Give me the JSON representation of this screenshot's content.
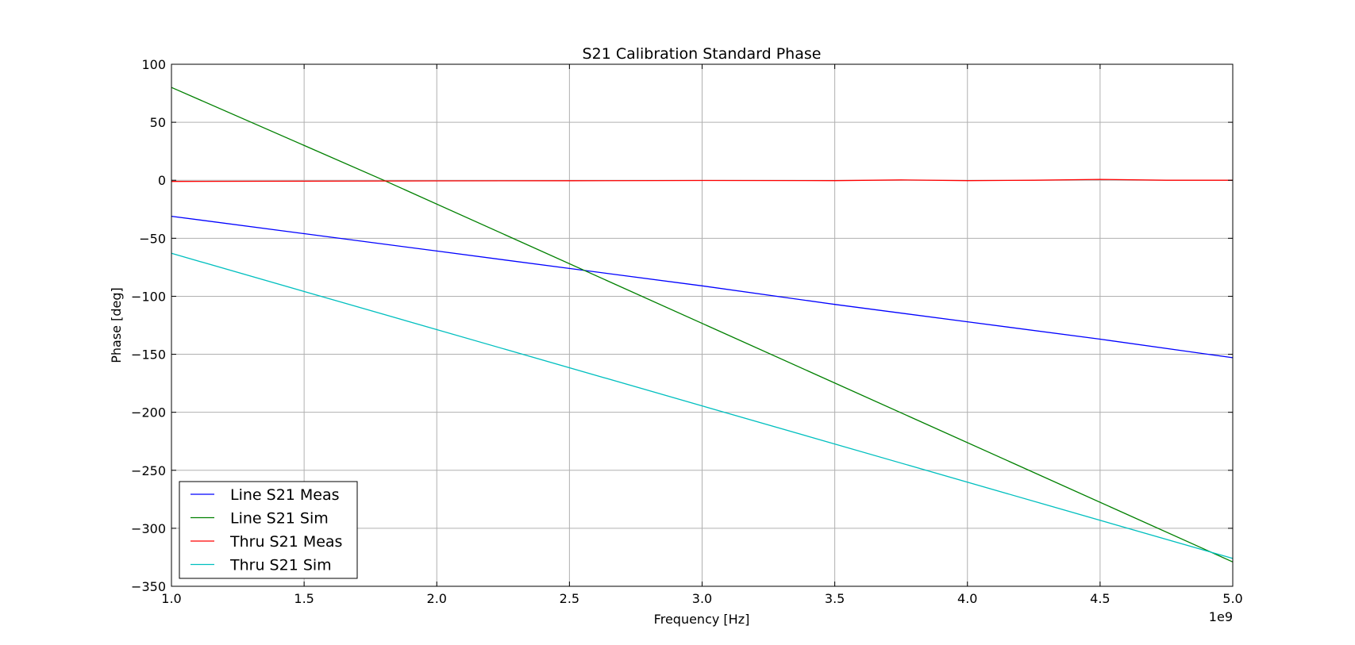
{
  "chart_data": {
    "type": "line",
    "title": "S21 Calibration Standard Phase",
    "xlabel": "Frequency [Hz]",
    "ylabel": "Phase [deg]",
    "x_offset_label": "1e9",
    "xlim": [
      1.0,
      5.0
    ],
    "ylim": [
      -350,
      100
    ],
    "xticks": [
      1.0,
      1.5,
      2.0,
      2.5,
      3.0,
      3.5,
      4.0,
      4.5,
      5.0
    ],
    "xtick_labels": [
      "1.0",
      "1.5",
      "2.0",
      "2.5",
      "3.0",
      "3.5",
      "4.0",
      "4.5",
      "5.0"
    ],
    "yticks": [
      100,
      50,
      0,
      -50,
      -100,
      -150,
      -200,
      -250,
      -300,
      -350
    ],
    "ytick_labels": [
      "100",
      "50",
      "0",
      "−50",
      "−100",
      "−150",
      "−200",
      "−250",
      "−300",
      "−350"
    ],
    "grid": true,
    "legend_position": "lower-left",
    "series": [
      {
        "name": "Line S21 Meas",
        "color": "#0000ff",
        "x": [
          1.0,
          1.5,
          2.0,
          2.5,
          3.0,
          3.5,
          4.0,
          4.5,
          5.0
        ],
        "y": [
          -31,
          -46,
          -61,
          -76,
          -91,
          -107,
          -122,
          -137,
          -153
        ]
      },
      {
        "name": "Line S21 Sim",
        "color": "#008000",
        "x": [
          1.0,
          1.8,
          5.0
        ],
        "y": [
          80,
          0,
          -329
        ]
      },
      {
        "name": "Thru S21 Meas",
        "color": "#ff0000",
        "x": [
          1.0,
          1.5,
          2.0,
          2.5,
          3.0,
          3.5,
          3.75,
          4.0,
          4.25,
          4.5,
          4.75,
          5.0
        ],
        "y": [
          -1,
          -0.8,
          -0.5,
          -0.4,
          -0.2,
          -0.3,
          0.3,
          -0.3,
          0,
          0.8,
          0,
          0
        ]
      },
      {
        "name": "Thru S21 Sim",
        "color": "#00bfbf",
        "x": [
          1.0,
          5.0
        ],
        "y": [
          -63,
          -326
        ]
      }
    ]
  }
}
